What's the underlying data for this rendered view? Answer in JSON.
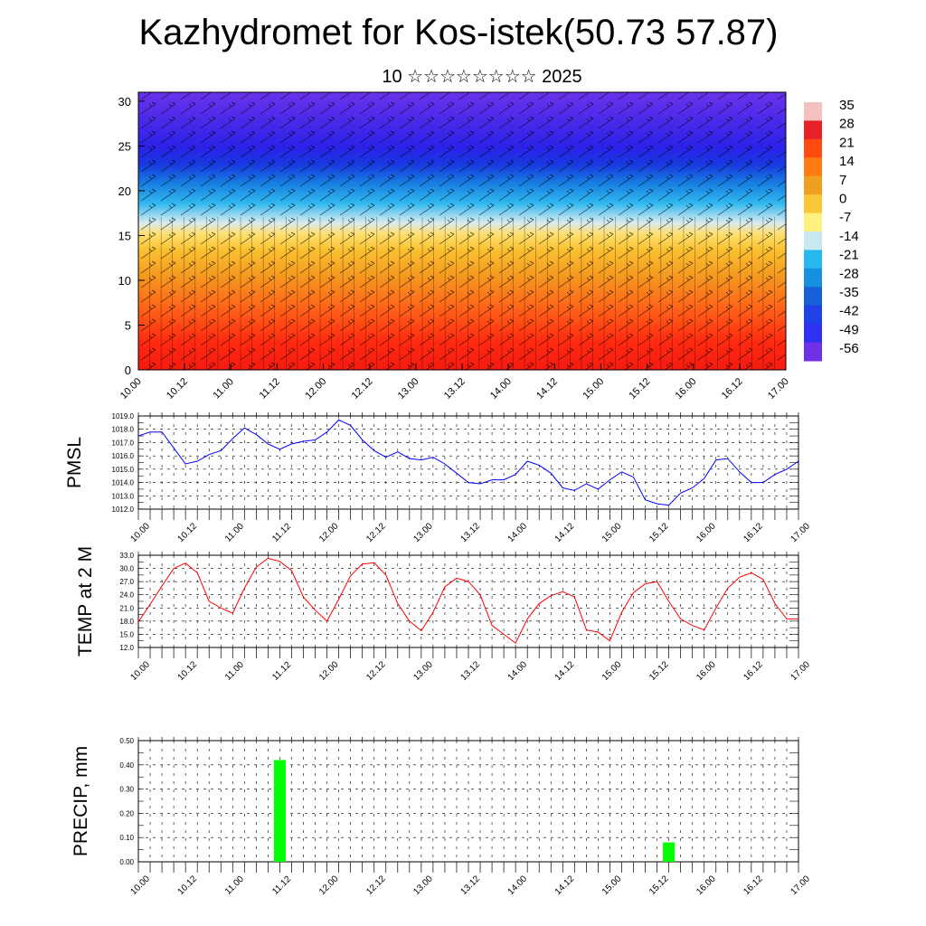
{
  "title": "Kazhydromet for Kos-istek(50.73 57.87)",
  "subtitle": "10 ☆☆☆☆☆☆☆☆ 2025",
  "x_tick_labels": [
    "10.00",
    "10.12",
    "11.00",
    "11.12",
    "12.00",
    "12.12",
    "13.00",
    "13.12",
    "14.00",
    "14.12",
    "15.00",
    "15.12",
    "16.00",
    "16.12",
    "17.00"
  ],
  "chart_data": [
    {
      "type": "heatmap",
      "name": "temperature-height-section",
      "x_ticks": [
        "10.00",
        "10.12",
        "11.00",
        "11.12",
        "12.00",
        "12.12",
        "13.00",
        "13.12",
        "14.00",
        "14.12",
        "15.00",
        "15.12",
        "16.00",
        "16.12",
        "17.00"
      ],
      "y_ticks": [
        0,
        5,
        10,
        15,
        20,
        25,
        30
      ],
      "ylim": [
        0,
        31
      ],
      "colorbar_labels": [
        "35",
        "28",
        "21",
        "14",
        "7",
        "0",
        "-7",
        "-14",
        "-21",
        "-28",
        "-35",
        "-42",
        "-49",
        "-56"
      ],
      "colorbar_colors": [
        "#f5c0c0",
        "#e8202a",
        "#ff4a10",
        "#ff7d14",
        "#f0a020",
        "#f8c838",
        "#fff080",
        "#c8e8f0",
        "#28b8f0",
        "#1890e0",
        "#1860d8",
        "#2040e8",
        "#3030f0",
        "#7030e8"
      ],
      "wind_barbs": true
    },
    {
      "type": "line",
      "name": "pmsl",
      "ylabel": "PMSL",
      "y_ticks": [
        "1012.0",
        "1013.0",
        "1014.0",
        "1015.0",
        "1016.0",
        "1017.0",
        "1018.0",
        "1019.0"
      ],
      "ylim": [
        1012.0,
        1019.0
      ],
      "color": "#0000ff",
      "x": [
        0,
        3,
        6,
        9,
        12,
        15,
        18,
        21,
        24,
        27,
        30,
        33,
        36,
        39,
        42,
        45,
        48,
        51,
        54,
        57,
        60,
        63,
        66,
        69,
        72,
        75,
        78,
        81,
        84,
        87,
        90,
        93,
        96,
        99,
        102,
        105,
        108,
        111,
        114,
        117,
        120,
        123,
        126,
        129,
        132,
        135,
        138,
        141,
        144,
        147,
        150,
        153,
        156,
        159,
        162,
        165,
        168
      ],
      "values": [
        1017.5,
        1017.8,
        1017.8,
        1016.6,
        1015.4,
        1015.6,
        1016.1,
        1016.4,
        1017.3,
        1018.1,
        1017.6,
        1016.9,
        1016.5,
        1016.9,
        1017.1,
        1017.2,
        1017.8,
        1018.7,
        1018.3,
        1017.2,
        1016.4,
        1015.9,
        1016.3,
        1015.8,
        1015.7,
        1015.9,
        1015.4,
        1014.7,
        1014.0,
        1013.9,
        1014.2,
        1014.2,
        1014.6,
        1015.6,
        1015.3,
        1014.7,
        1013.6,
        1013.4,
        1013.9,
        1013.5,
        1014.2,
        1014.8,
        1014.4,
        1012.7,
        1012.4,
        1012.3,
        1013.2,
        1013.6,
        1014.3,
        1015.7,
        1015.8,
        1014.8,
        1014.0,
        1014.0,
        1014.6,
        1015.0,
        1015.6
      ]
    },
    {
      "type": "line",
      "name": "temp-2m",
      "ylabel": "TEMP at 2 M",
      "y_ticks": [
        "12.0",
        "15.0",
        "18.0",
        "21.0",
        "24.0",
        "27.0",
        "30.0",
        "33.0"
      ],
      "ylim": [
        12.0,
        33.0
      ],
      "color": "#ff0000",
      "x": [
        0,
        3,
        6,
        9,
        12,
        15,
        18,
        21,
        24,
        27,
        30,
        33,
        36,
        39,
        42,
        45,
        48,
        51,
        54,
        57,
        60,
        63,
        66,
        69,
        72,
        75,
        78,
        81,
        84,
        87,
        90,
        93,
        96,
        99,
        102,
        105,
        108,
        111,
        114,
        117,
        120,
        123,
        126,
        129,
        132,
        135,
        138,
        141,
        144,
        147,
        150,
        153,
        156,
        159,
        162,
        165,
        168
      ],
      "values": [
        17.8,
        21.8,
        26.0,
        30.0,
        31.2,
        29.0,
        22.5,
        21.0,
        19.8,
        25.5,
        30.3,
        32.3,
        31.6,
        29.5,
        23.5,
        20.5,
        18.0,
        23.0,
        28.3,
        31.0,
        31.3,
        28.5,
        22.0,
        18.0,
        15.8,
        20.0,
        25.8,
        27.8,
        27.0,
        24.0,
        17.0,
        15.0,
        13.0,
        18.5,
        22.0,
        23.8,
        24.7,
        23.5,
        16.0,
        15.5,
        13.5,
        20.0,
        24.5,
        26.5,
        27.0,
        22.5,
        18.5,
        17.0,
        16.0,
        21.0,
        25.5,
        28.0,
        29.0,
        27.5,
        22.0,
        18.5,
        18.5
      ]
    },
    {
      "type": "bar",
      "name": "precip",
      "ylabel": "PRECIP, mm",
      "y_ticks": [
        "0.00",
        "0.10",
        "0.20",
        "0.30",
        "0.40",
        "0.50"
      ],
      "ylim": [
        0,
        0.5
      ],
      "color": "#00ff00",
      "x": [
        36,
        135
      ],
      "values": [
        0.42,
        0.08
      ]
    }
  ]
}
